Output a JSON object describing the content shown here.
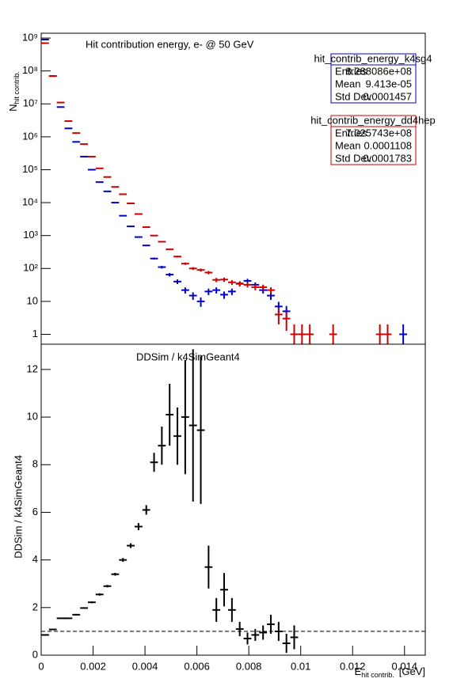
{
  "chart_data": [
    {
      "type": "errorbar-log",
      "title": "Hit contribution energy,  e- @ 50 GeV",
      "y_label": "N",
      "y_label_sub": "hit contrib.",
      "xlim": [
        0,
        0.0148
      ],
      "ylim": [
        0.5,
        1400000000
      ],
      "log_y": true,
      "yticks": [
        {
          "value": 1,
          "label": "1"
        },
        {
          "value": 10,
          "label": "10"
        },
        {
          "value": 100,
          "label": "10²"
        },
        {
          "value": 1000,
          "label": "10³"
        },
        {
          "value": 10000,
          "label": "10⁴"
        },
        {
          "value": 100000,
          "label": "10⁵"
        },
        {
          "value": 1000000,
          "label": "10⁶"
        },
        {
          "value": 10000000,
          "label": "10⁷"
        },
        {
          "value": 100000000,
          "label": "10⁸"
        },
        {
          "value": 1000000000,
          "label": "10⁹"
        }
      ],
      "xerr": 0.00015,
      "x": [
        0.00015,
        0.00045,
        0.00075,
        0.00105,
        0.00135,
        0.00165,
        0.00195,
        0.00225,
        0.00255,
        0.00285,
        0.00315,
        0.00345,
        0.00375,
        0.00405,
        0.00435,
        0.00465,
        0.00495,
        0.00525,
        0.00555,
        0.00585,
        0.00615,
        0.00645,
        0.00675,
        0.00705,
        0.00735,
        0.00765,
        0.00795,
        0.00825,
        0.00855,
        0.00885,
        0.00915,
        0.00945,
        0.00975,
        0.01005,
        0.01035,
        0.01065,
        0.01095,
        0.01125,
        0.01155,
        0.01185,
        0.01215,
        0.01245,
        0.01275,
        0.01305,
        0.01335,
        0.01365,
        0.01395
      ],
      "series": [
        {
          "name": "hit_contrib_energy_k4sg4",
          "color": "#0000cc",
          "stats": [
            [
              "Entries",
              "8.288086e+08"
            ],
            [
              "Mean",
              "9.413e-05"
            ],
            [
              "Std Dev",
              "0.0001457"
            ]
          ],
          "values": [
            900000000,
            70000000,
            8000000,
            1800000,
            700000,
            250000,
            100000,
            42000,
            22000,
            10000,
            4000,
            1900,
            900,
            500,
            200,
            110,
            65,
            40,
            22,
            15,
            10,
            20,
            22,
            16,
            20,
            35,
            42,
            32,
            22,
            15,
            7,
            5,
            null,
            null,
            null,
            null,
            null,
            null,
            null,
            null,
            null,
            null,
            null,
            null,
            null,
            null,
            1
          ]
        },
        {
          "name": "hit_contrib_energy_dd4hep",
          "color": "#cc0000",
          "stats": [
            [
              "Entries",
              "7.025743e+08"
            ],
            [
              "Mean",
              "0.0001108"
            ],
            [
              "Std Dev",
              "0.0001783"
            ]
          ],
          "values": [
            700000000,
            70000000,
            11000000,
            3000000,
            1300000,
            600000,
            250000,
            110000,
            60000,
            30000,
            18000,
            9500,
            4500,
            1800,
            1000,
            650,
            380,
            230,
            140,
            100,
            90,
            75,
            45,
            46,
            38,
            34,
            32,
            27,
            27,
            22,
            4,
            3,
            1,
            1,
            1,
            null,
            null,
            1,
            null,
            null,
            null,
            null,
            null,
            1,
            1,
            null,
            null
          ]
        }
      ]
    },
    {
      "type": "ratio",
      "title": "DDSim / k4SimGeant4",
      "y_label": "DDSim / k4SimGeant4",
      "x_label": "E",
      "x_label_sub": "hit contrib.",
      "x_label_unit": "[GeV]",
      "xlim": [
        0,
        0.0148
      ],
      "ylim": [
        0,
        13.06
      ],
      "xticks": [
        0,
        0.002,
        0.004,
        0.006,
        0.008,
        0.01,
        0.012,
        0.014
      ],
      "yticks": [
        0,
        2,
        4,
        6,
        8,
        10,
        12
      ],
      "reference": 1,
      "color": "#000000",
      "x": [
        0.00015,
        0.00045,
        0.0009,
        0.00135,
        0.00165,
        0.00195,
        0.00225,
        0.00255,
        0.00285,
        0.00315,
        0.00345,
        0.00375,
        0.00405,
        0.00435,
        0.00465,
        0.00495,
        0.00525,
        0.00555,
        0.00585,
        0.00615,
        0.00645,
        0.00675,
        0.00705,
        0.00735,
        0.00765,
        0.00795,
        0.00825,
        0.00855,
        0.00885,
        0.00915,
        0.00945,
        0.00975
      ],
      "values": [
        0.85,
        1.08,
        1.55,
        1.7,
        1.98,
        2.22,
        2.55,
        2.9,
        3.4,
        4.0,
        4.6,
        5.4,
        6.1,
        8.1,
        8.8,
        10.1,
        9.2,
        10.0,
        9.65,
        9.45,
        3.7,
        1.9,
        2.75,
        1.9,
        1.1,
        0.7,
        0.85,
        0.95,
        1.3,
        1.0,
        0.5,
        0.75
      ],
      "yerr": [
        0.02,
        0.02,
        0.03,
        0.03,
        0.03,
        0.04,
        0.05,
        0.05,
        0.06,
        0.08,
        0.1,
        0.15,
        0.2,
        0.4,
        0.8,
        1.3,
        1.2,
        2.4,
        3.2,
        3.1,
        0.9,
        0.5,
        0.7,
        0.5,
        0.3,
        0.25,
        0.25,
        0.3,
        0.4,
        0.4,
        0.4,
        0.5
      ],
      "xerr": [
        0.00015,
        0.00015,
        0.0003,
        0.00015,
        0.00015,
        0.00015,
        0.00015,
        0.00015,
        0.00015,
        0.00015,
        0.00015,
        0.00015,
        0.00015,
        0.00015,
        0.00015,
        0.00015,
        0.00015,
        0.00015,
        0.00015,
        0.00015,
        0.00015,
        0.00015,
        0.00015,
        0.00015,
        0.00015,
        0.00015,
        0.00015,
        0.00015,
        0.00015,
        0.00015,
        0.00015,
        0.00015
      ]
    }
  ]
}
